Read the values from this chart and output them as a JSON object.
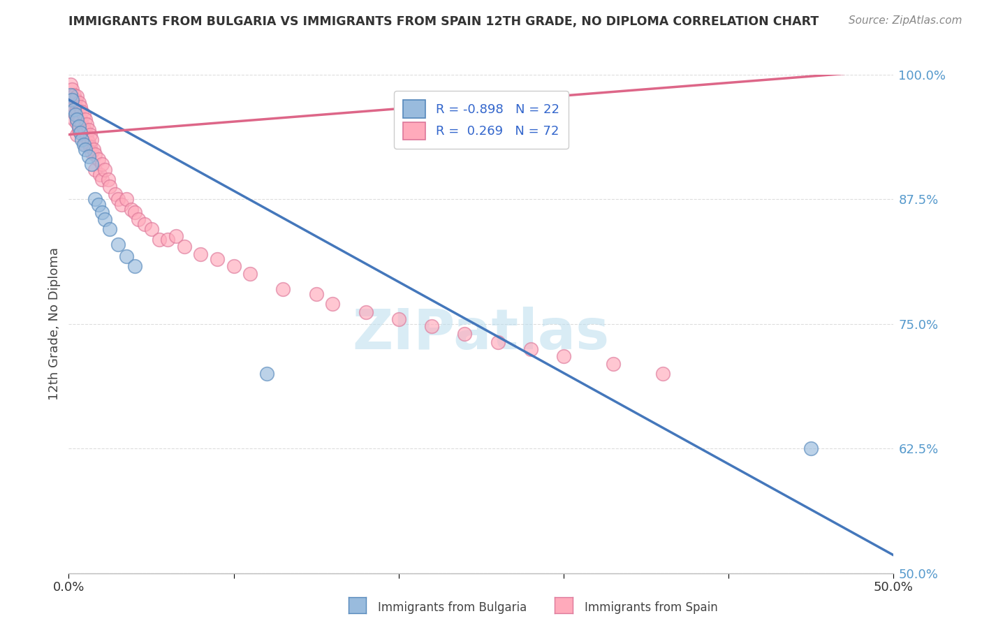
{
  "title": "IMMIGRANTS FROM BULGARIA VS IMMIGRANTS FROM SPAIN 12TH GRADE, NO DIPLOMA CORRELATION CHART",
  "source": "Source: ZipAtlas.com",
  "ylabel": "12th Grade, No Diploma",
  "xlim": [
    0.0,
    0.5
  ],
  "ylim": [
    0.5,
    1.0
  ],
  "yticks": [
    0.5,
    0.625,
    0.75,
    0.875,
    1.0
  ],
  "ytick_labels": [
    "50.0%",
    "62.5%",
    "75.0%",
    "87.5%",
    "100.0%"
  ],
  "bulgaria_R": -0.898,
  "bulgaria_N": 22,
  "spain_R": 0.269,
  "spain_N": 72,
  "bulgaria_color": "#99BBDD",
  "spain_color": "#FFAABB",
  "bulgaria_edge_color": "#5588BB",
  "spain_edge_color": "#DD7799",
  "bulgaria_line_color": "#4477BB",
  "spain_line_color": "#DD6688",
  "watermark": "ZIPatlas",
  "background_color": "#FFFFFF",
  "grid_color": "#DDDDDD",
  "bulgaria_line_x0": 0.0,
  "bulgaria_line_y0": 0.975,
  "bulgaria_line_x1": 0.5,
  "bulgaria_line_y1": 0.518,
  "spain_line_x0": 0.0,
  "spain_line_y0": 0.94,
  "spain_line_x1": 0.5,
  "spain_line_y1": 1.005,
  "bulgaria_scatter_x": [
    0.001,
    0.002,
    0.003,
    0.004,
    0.005,
    0.006,
    0.007,
    0.008,
    0.009,
    0.01,
    0.012,
    0.014,
    0.016,
    0.018,
    0.02,
    0.022,
    0.025,
    0.03,
    0.035,
    0.04,
    0.12,
    0.45
  ],
  "bulgaria_scatter_y": [
    0.98,
    0.975,
    0.965,
    0.96,
    0.955,
    0.948,
    0.942,
    0.935,
    0.93,
    0.925,
    0.918,
    0.91,
    0.875,
    0.87,
    0.862,
    0.855,
    0.845,
    0.83,
    0.818,
    0.808,
    0.7,
    0.625
  ],
  "spain_scatter_x": [
    0.001,
    0.001,
    0.002,
    0.002,
    0.003,
    0.003,
    0.003,
    0.004,
    0.004,
    0.005,
    0.005,
    0.005,
    0.005,
    0.006,
    0.006,
    0.006,
    0.007,
    0.007,
    0.008,
    0.008,
    0.009,
    0.009,
    0.01,
    0.01,
    0.01,
    0.011,
    0.011,
    0.012,
    0.012,
    0.013,
    0.013,
    0.014,
    0.014,
    0.015,
    0.016,
    0.016,
    0.018,
    0.019,
    0.02,
    0.02,
    0.022,
    0.024,
    0.025,
    0.028,
    0.03,
    0.032,
    0.035,
    0.038,
    0.04,
    0.042,
    0.046,
    0.05,
    0.055,
    0.06,
    0.065,
    0.07,
    0.08,
    0.09,
    0.1,
    0.11,
    0.13,
    0.15,
    0.16,
    0.18,
    0.2,
    0.22,
    0.24,
    0.26,
    0.28,
    0.3,
    0.33,
    0.36
  ],
  "spain_scatter_y": [
    0.99,
    0.975,
    0.985,
    0.97,
    0.98,
    0.968,
    0.955,
    0.975,
    0.96,
    0.978,
    0.965,
    0.952,
    0.94,
    0.972,
    0.958,
    0.945,
    0.968,
    0.955,
    0.963,
    0.95,
    0.96,
    0.946,
    0.955,
    0.943,
    0.93,
    0.95,
    0.937,
    0.945,
    0.932,
    0.94,
    0.928,
    0.935,
    0.922,
    0.925,
    0.92,
    0.905,
    0.915,
    0.9,
    0.91,
    0.895,
    0.905,
    0.895,
    0.888,
    0.88,
    0.875,
    0.87,
    0.875,
    0.865,
    0.862,
    0.855,
    0.85,
    0.845,
    0.835,
    0.835,
    0.838,
    0.828,
    0.82,
    0.815,
    0.808,
    0.8,
    0.785,
    0.78,
    0.77,
    0.762,
    0.755,
    0.748,
    0.74,
    0.732,
    0.725,
    0.718,
    0.71,
    0.7
  ]
}
